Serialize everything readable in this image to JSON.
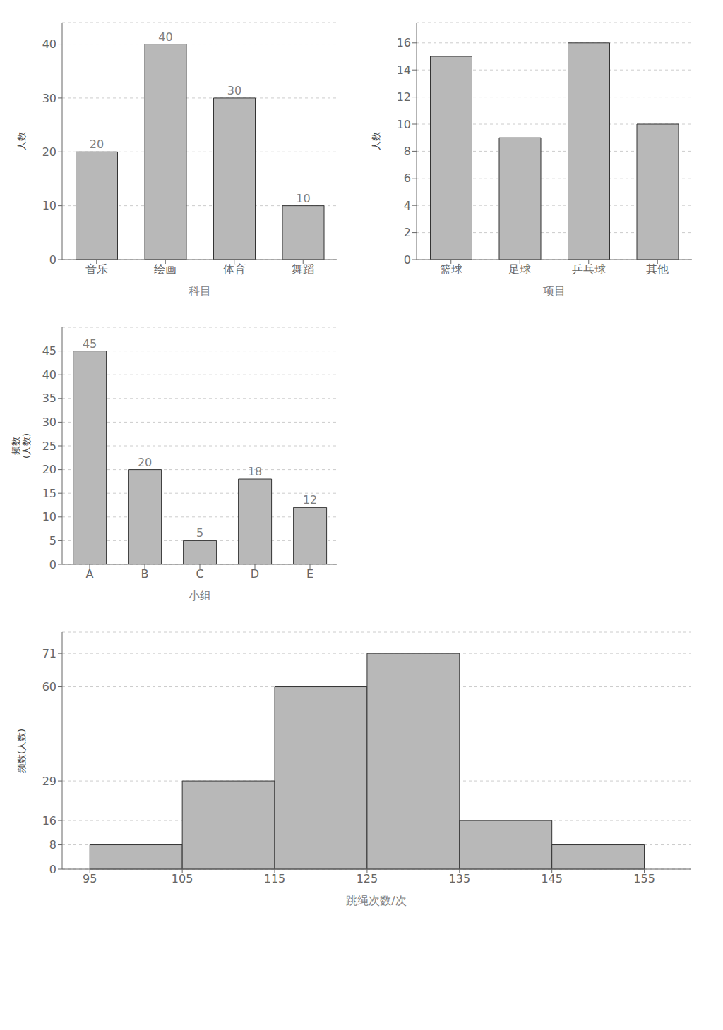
{
  "chart_data": [
    {
      "type": "bar",
      "categories": [
        "音乐",
        "绘画",
        "体育",
        "舞蹈"
      ],
      "values": [
        20,
        40,
        30,
        10
      ],
      "xlabel": "科目",
      "ylabel": "人数",
      "ylim": [
        0,
        44
      ],
      "yticks": [
        0,
        10,
        20,
        30,
        40
      ],
      "color": "#b8b8b8",
      "grid": true,
      "data_labels": true
    },
    {
      "type": "bar",
      "categories": [
        "篮球",
        "足球",
        "乒乓球",
        "其他"
      ],
      "values": [
        15,
        9,
        16,
        10
      ],
      "xlabel": "项目",
      "ylabel": "人数",
      "ylim": [
        0,
        17.5
      ],
      "yticks": [
        0,
        2,
        4,
        6,
        8,
        10,
        12,
        14,
        16
      ],
      "color": "#b8b8b8",
      "grid": true,
      "data_labels": false
    },
    {
      "type": "bar",
      "categories": [
        "A",
        "B",
        "C",
        "D",
        "E"
      ],
      "values": [
        45,
        20,
        5,
        18,
        12
      ],
      "xlabel": "小组",
      "ylabel": "频数\n(人数)",
      "ylim": [
        0,
        50
      ],
      "yticks": [
        0,
        5,
        10,
        15,
        20,
        25,
        30,
        35,
        40,
        45
      ],
      "color": "#b8b8b8",
      "grid": true,
      "data_labels": true
    },
    {
      "type": "histogram",
      "bins": [
        95,
        105,
        115,
        125,
        135,
        145,
        155
      ],
      "values": [
        8,
        29,
        60,
        71,
        16,
        8
      ],
      "xlabel": "跳绳次数/次",
      "ylabel": "频数(人数)",
      "xlim": [
        92,
        160
      ],
      "xticks": [
        95,
        105,
        115,
        125,
        135,
        145,
        155
      ],
      "ylim": [
        0,
        78
      ],
      "yticks": [
        0,
        8,
        16,
        29,
        60,
        71
      ],
      "color": "#b8b8b8",
      "grid": true
    }
  ]
}
